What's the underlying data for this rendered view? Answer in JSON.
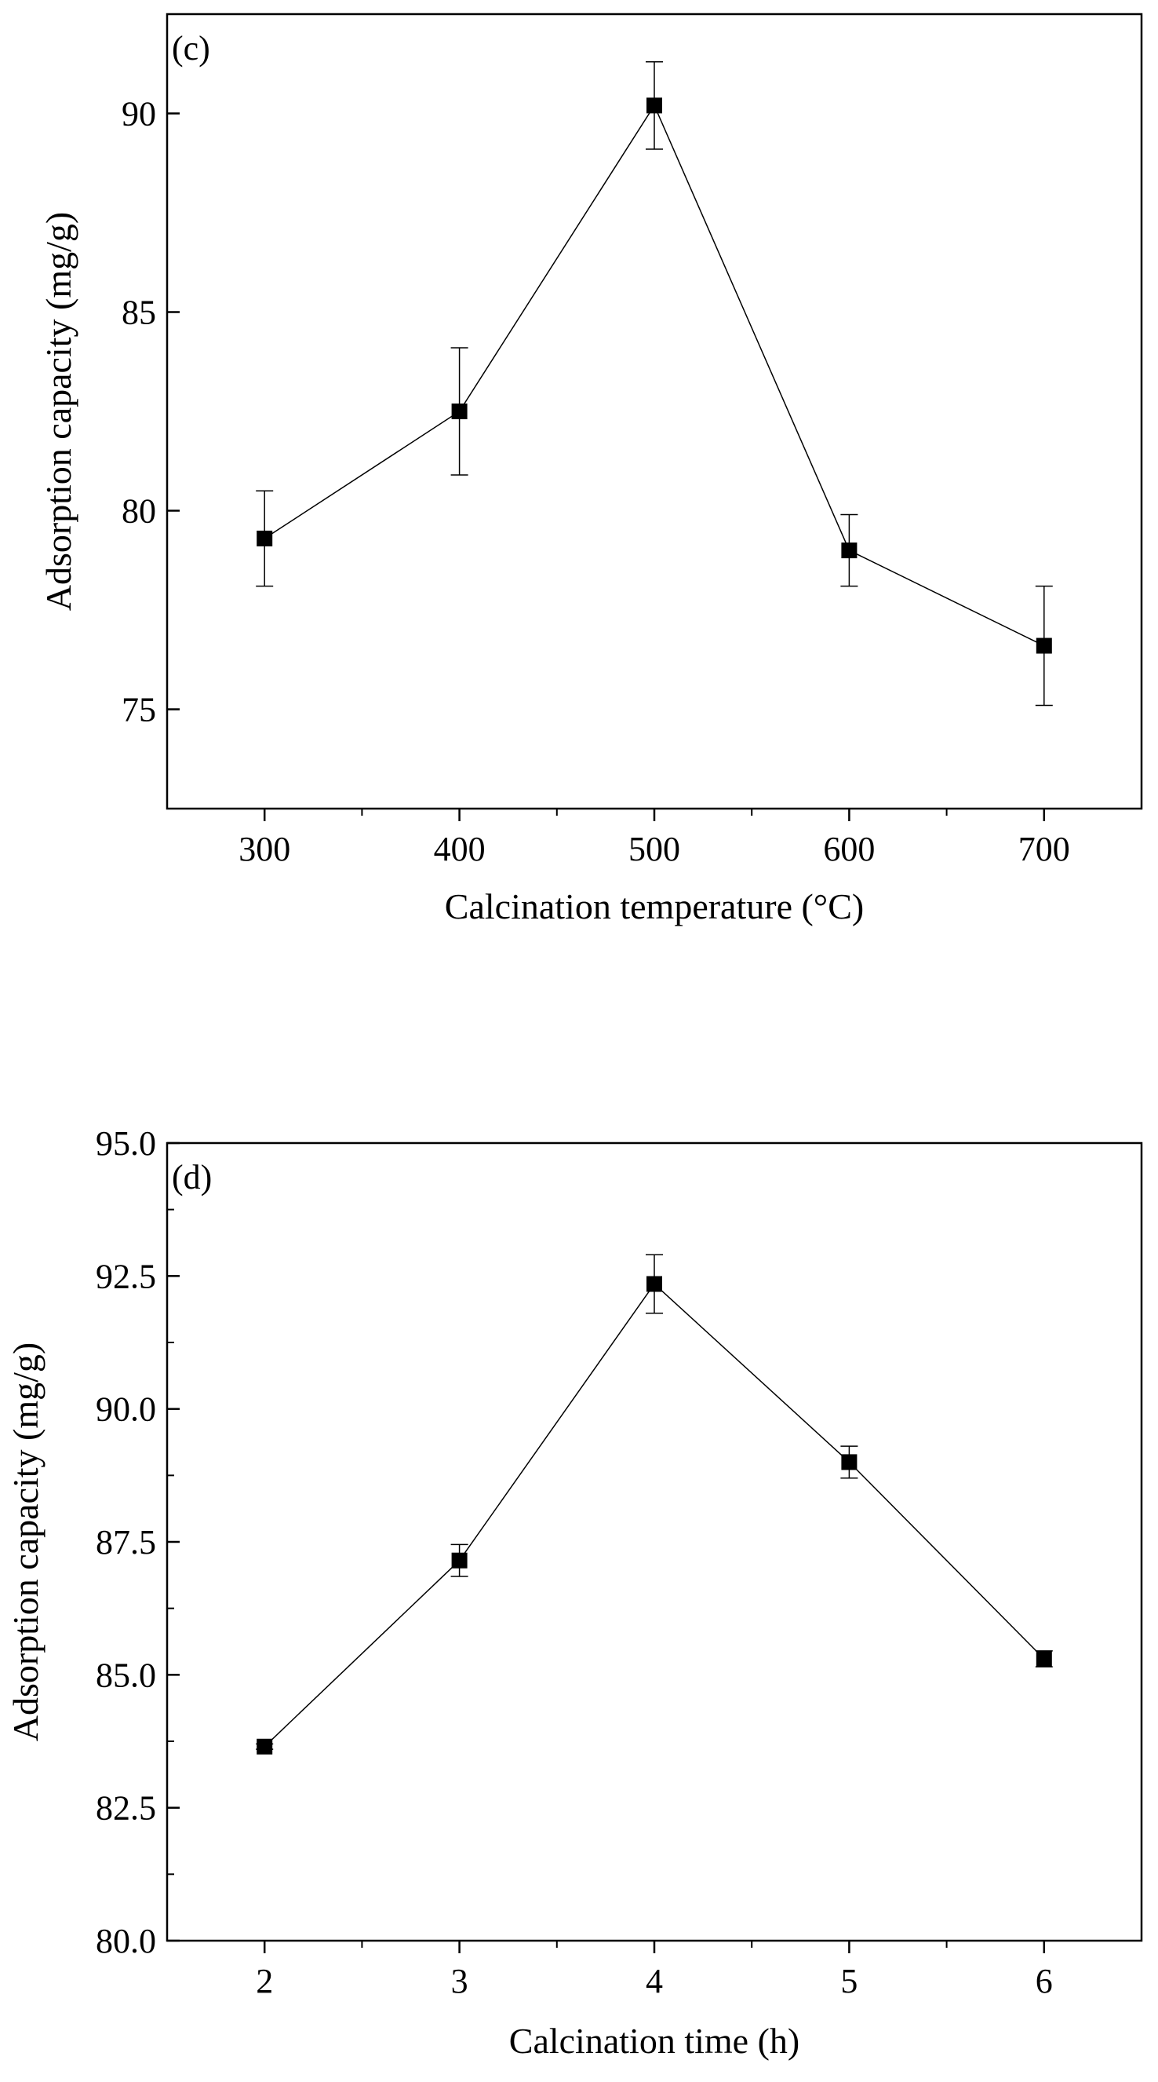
{
  "chart_data": [
    {
      "type": "line",
      "panel_label": "(c)",
      "xlabel": "Calcination temperature (°C)",
      "ylabel": "Adsorption capacity (mg/g)",
      "x": [
        300,
        400,
        500,
        600,
        700
      ],
      "x_tick_labels": [
        "300",
        "400",
        "500",
        "600",
        "700"
      ],
      "xlim": [
        250,
        750
      ],
      "ylim": [
        72.5,
        92.5
      ],
      "y_ticks": [
        75,
        80,
        85,
        90
      ],
      "y_tick_labels": [
        "75",
        "80",
        "85",
        "90"
      ],
      "series": [
        {
          "name": "Adsorption capacity",
          "values": [
            79.3,
            82.5,
            90.2,
            79.0,
            76.6
          ],
          "errors": [
            1.2,
            1.6,
            1.1,
            0.9,
            1.5
          ]
        }
      ],
      "marker": "square",
      "grid": false
    },
    {
      "type": "line",
      "panel_label": "(d)",
      "xlabel": "Calcination time (h)",
      "ylabel": "Adsorption capacity (mg/g)",
      "x": [
        2,
        3,
        4,
        5,
        6
      ],
      "x_tick_labels": [
        "2",
        "3",
        "4",
        "5",
        "6"
      ],
      "xlim": [
        1.5,
        6.5
      ],
      "ylim": [
        80.0,
        95.0
      ],
      "y_ticks": [
        80.0,
        82.5,
        85.0,
        87.5,
        90.0,
        92.5,
        95.0
      ],
      "y_tick_labels": [
        "80.0",
        "82.5",
        "85.0",
        "87.5",
        "90.0",
        "92.5",
        "95.0"
      ],
      "series": [
        {
          "name": "Adsorption capacity",
          "values": [
            83.65,
            87.15,
            92.35,
            89.0,
            85.3
          ],
          "errors": [
            0.05,
            0.3,
            0.55,
            0.3,
            0.15
          ]
        }
      ],
      "marker": "square",
      "grid": false
    }
  ]
}
